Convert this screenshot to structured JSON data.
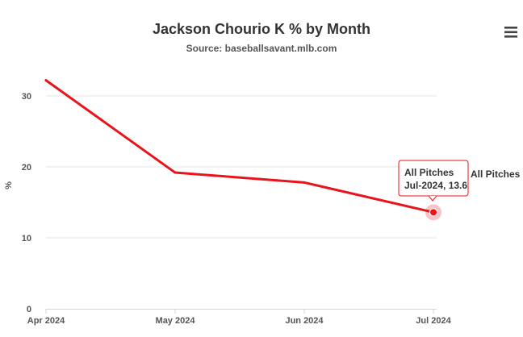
{
  "chart_data": {
    "type": "line",
    "title": "Jackson Chourio K % by Month",
    "subtitle": "Source: baseballsavant.mlb.com",
    "ylabel": "%",
    "xlabel": "",
    "categories": [
      "Apr 2024",
      "May 2024",
      "Jun 2024",
      "Jul 2024"
    ],
    "series": [
      {
        "name": "All Pitches",
        "values": [
          32.2,
          19.2,
          17.8,
          13.6
        ],
        "color": "#e8131b"
      }
    ],
    "ylim": [
      0,
      35
    ],
    "yticks": [
      0,
      10,
      20,
      30
    ],
    "grid": true,
    "legend": "right",
    "tooltip": {
      "series": "All Pitches",
      "label": "Jul-2024, 13.6"
    }
  },
  "menu_icon": "hamburger-menu-icon"
}
